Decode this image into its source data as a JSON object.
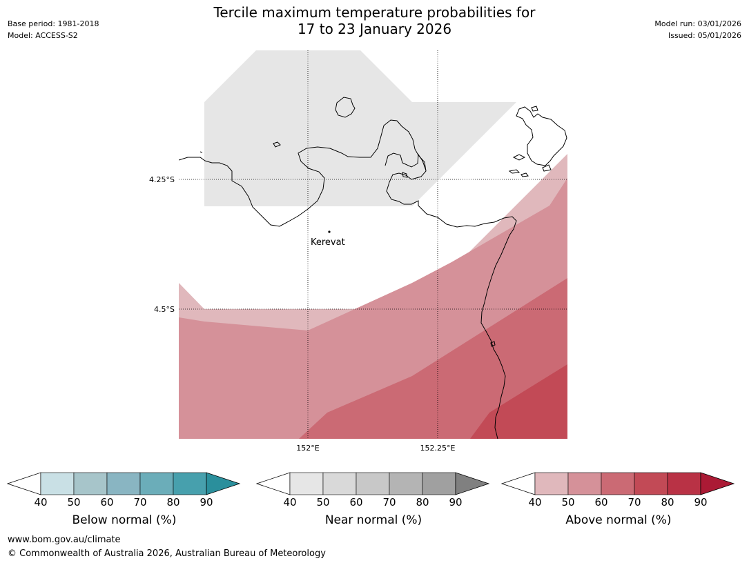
{
  "title_line1": "Tercile maximum temperature probabilities for",
  "title_line2": "17 to 23 January 2026",
  "meta": {
    "base_period": "Base period: 1981-2018",
    "model": "Model: ACCESS-S2",
    "model_run": "Model run: 03/01/2026",
    "issued": "Issued: 05/01/2026"
  },
  "map": {
    "lat_labels": [
      "4.25°S",
      "4.5°S"
    ],
    "lon_labels": [
      "152°E",
      "152.25°E"
    ],
    "place": "Kerevat"
  },
  "colors": {
    "near_normal_shade": "#e6e6e6",
    "above_40_50": "#e0b8bc",
    "above_50_60": "#d59199",
    "above_60_70": "#cb6a74",
    "above_70_80": "#c24a56"
  },
  "legends": [
    {
      "title": "Below normal (%)",
      "ticks": [
        "40",
        "50",
        "60",
        "70",
        "80",
        "90"
      ],
      "colors": [
        "#c9e0e5",
        "#a7c5ca",
        "#89b5c2",
        "#6badb9",
        "#47a0ad",
        "#2a8f9c"
      ]
    },
    {
      "title": "Near normal (%)",
      "ticks": [
        "40",
        "50",
        "60",
        "70",
        "80",
        "90"
      ],
      "colors": [
        "#e6e6e6",
        "#d9d9d9",
        "#c8c8c8",
        "#b4b4b4",
        "#a0a0a0",
        "#808080"
      ]
    },
    {
      "title": "Above normal (%)",
      "ticks": [
        "40",
        "50",
        "60",
        "70",
        "80",
        "90"
      ],
      "colors": [
        "#e0b8bc",
        "#d59199",
        "#cb6a74",
        "#c24a56",
        "#b93245",
        "#ab1a35"
      ]
    }
  ],
  "footer": {
    "url": "www.bom.gov.au/climate",
    "copyright": "© Commonwealth of Australia 2026, Australian Bureau of Meteorology"
  }
}
